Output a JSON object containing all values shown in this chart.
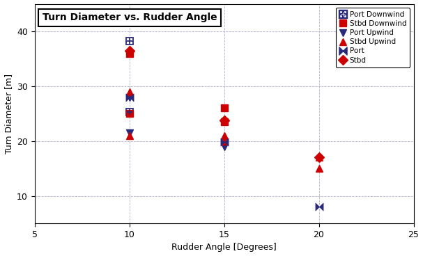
{
  "title": "Turn Diameter vs. Rudder Angle",
  "xlabel": "Rudder Angle [Degrees]",
  "ylabel": "Turn Diameter [m]",
  "xlim": [
    5,
    25
  ],
  "ylim": [
    5,
    45
  ],
  "xticks": [
    5,
    10,
    15,
    20,
    25
  ],
  "yticks": [
    10,
    20,
    30,
    40
  ],
  "port_color": "#2a2a7a",
  "stbd_color": "#cc0000",
  "grid_color": "#aaaacc",
  "series": {
    "Port Downwind": {
      "marker": "square_cross",
      "color": "#2a2a7a",
      "x": [
        10,
        10
      ],
      "y": [
        38.2,
        25.3
      ]
    },
    "Stbd Downwind": {
      "marker": "s",
      "color": "#cc0000",
      "x": [
        10,
        10,
        15,
        15
      ],
      "y": [
        36.0,
        25.0,
        26.0,
        23.5
      ]
    },
    "Port Upwind": {
      "marker": "v",
      "color": "#2a2a7a",
      "x": [
        10,
        10,
        15,
        15
      ],
      "y": [
        28.0,
        21.5,
        19.3,
        19.0
      ]
    },
    "Stbd Upwind": {
      "marker": "^",
      "color": "#cc0000",
      "x": [
        10,
        10,
        15,
        15,
        20,
        20
      ],
      "y": [
        29.0,
        21.0,
        21.0,
        20.0,
        17.0,
        15.0
      ]
    },
    "Port": {
      "marker": "bowtie",
      "color": "#2a2a7a",
      "x": [
        10,
        15,
        20
      ],
      "y": [
        28.0,
        19.8,
        8.0
      ]
    },
    "Stbd": {
      "marker": "D",
      "color": "#cc0000",
      "x": [
        10,
        15,
        20
      ],
      "y": [
        36.5,
        23.8,
        17.0
      ]
    }
  }
}
